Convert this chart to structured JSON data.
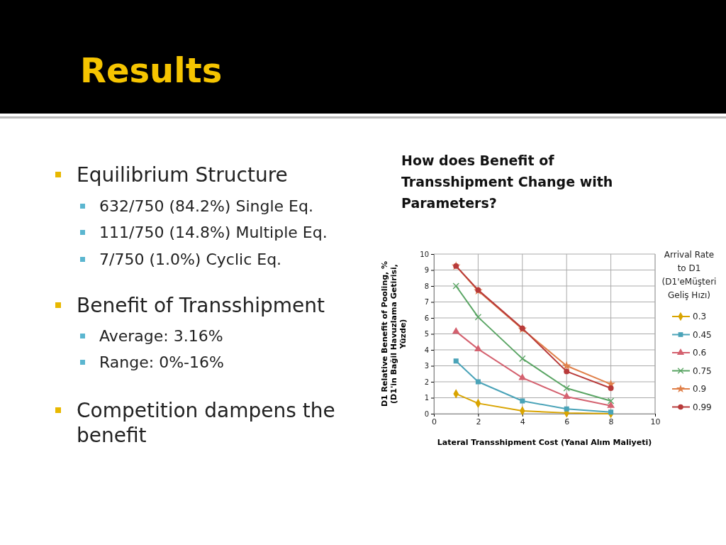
{
  "chart_data": {
    "type": "line",
    "title": "How does Benefit of Transshipment Change with Parameters?",
    "xlabel": "Lateral Transshipment Cost (Yanal Alım Maliyeti)",
    "ylabel": "D1 Relative Benefit of Pooling, % (D1'in Bağil Havuzlama Getirisi, Yüzde)",
    "legend_title": "Arrival Rate to D1 (D1'eMüşteri Geliş Hızı)",
    "legend": "right",
    "grid": true,
    "x": [
      1,
      2,
      4,
      6,
      8
    ],
    "xlim": [
      0,
      10
    ],
    "xticks": [
      0,
      2,
      4,
      6,
      8,
      10
    ],
    "ylim": [
      0,
      10
    ],
    "yticks": [
      0,
      1,
      2,
      3,
      4,
      5,
      6,
      7,
      8,
      9,
      10
    ],
    "series": [
      {
        "name": "0.3",
        "color": "#d9a400",
        "marker": "diamond",
        "values": [
          1.25,
          0.65,
          0.18,
          0.05,
          0.0
        ]
      },
      {
        "name": "0.45",
        "color": "#4aa3b8",
        "marker": "square",
        "values": [
          3.3,
          2.0,
          0.8,
          0.3,
          0.1
        ]
      },
      {
        "name": "0.6",
        "color": "#d4616f",
        "marker": "triangle",
        "values": [
          5.15,
          4.05,
          2.25,
          1.07,
          0.5
        ]
      },
      {
        "name": "0.75",
        "color": "#5aa564",
        "marker": "cross",
        "values": [
          8.0,
          6.05,
          3.45,
          1.6,
          0.8
        ]
      },
      {
        "name": "0.9",
        "color": "#e0804a",
        "marker": "star",
        "values": [
          9.25,
          7.7,
          5.3,
          3.0,
          1.85
        ]
      },
      {
        "name": "0.99",
        "color": "#b83a3a",
        "marker": "circle",
        "values": [
          9.25,
          7.75,
          5.35,
          2.65,
          1.6
        ]
      }
    ],
    "annotations": [
      "Results",
      "Equilibrium Structure",
      "632/750 (84.2%) Single Eq.",
      "111/750 (14.8%) Multiple Eq.",
      "7/750 (1.0%) Cyclic Eq.",
      "Benefit of Transshipment",
      "Average: 3.16%",
      "Range: 0%-16%",
      "Competition dampens the benefit"
    ]
  }
}
